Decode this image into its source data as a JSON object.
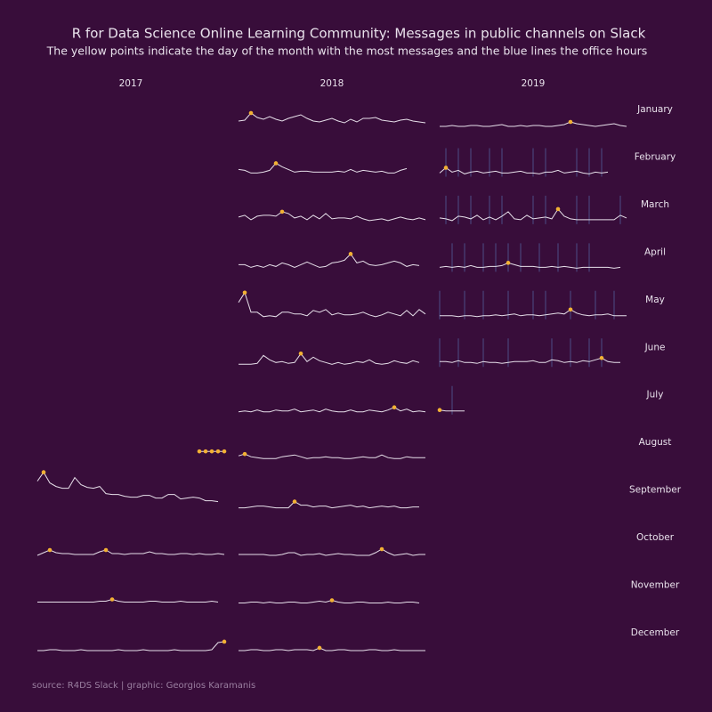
{
  "chart_data": {
    "type": "sparkline-grid",
    "title": "R for Data Science Online Learning Community: Messages in public channels on Slack",
    "subtitle": "The yellow points indicate the day of the month with the most messages and the blue lines the office hours",
    "caption": "source: R4DS Slack | graphic: Georgios Karamanis",
    "months": [
      "January",
      "February",
      "March",
      "April",
      "May",
      "June",
      "July",
      "August",
      "September",
      "October",
      "November",
      "December"
    ],
    "line_color": "#e6dfe9",
    "peak_color": "#f2b134",
    "office_hours_color": "#4b4d86",
    "ylim": [
      0,
      45
    ],
    "columns": [
      {
        "year": "2017",
        "panels": [
          null,
          null,
          null,
          null,
          null,
          null,
          null,
          {
            "first_day": 27,
            "values": [
              12,
              12,
              12,
              12,
              12
            ]
          },
          {
            "first_day": 1,
            "values": [
              32,
              42,
              30,
              26,
              24,
              24,
              36,
              28,
              25,
              24,
              26,
              18,
              17,
              17,
              15,
              14,
              14,
              16,
              16,
              13,
              13,
              17,
              17,
              12,
              13,
              14,
              13,
              10,
              10,
              9
            ]
          },
          {
            "first_day": 1,
            "values": [
              2,
              5,
              8,
              5,
              4,
              4,
              3,
              3,
              3,
              3,
              6,
              8,
              4,
              4,
              3,
              4,
              4,
              4,
              6,
              4,
              4,
              3,
              3,
              4,
              4,
              3,
              4,
              3,
              3,
              4,
              3
            ]
          },
          {
            "first_day": 1,
            "values": [
              3,
              3,
              3,
              3,
              3,
              3,
              3,
              3,
              3,
              3,
              4,
              4,
              6,
              4,
              3,
              3,
              3,
              3,
              4,
              4,
              3,
              3,
              3,
              4,
              3,
              3,
              3,
              3,
              4,
              3
            ]
          },
          {
            "first_day": 1,
            "values": [
              2,
              2,
              3,
              3,
              2,
              2,
              2,
              3,
              2,
              2,
              2,
              2,
              2,
              3,
              2,
              2,
              2,
              3,
              2,
              2,
              2,
              2,
              3,
              2,
              2,
              2,
              2,
              2,
              3,
              11,
              12
            ]
          }
        ]
      },
      {
        "year": "2018",
        "panels": [
          {
            "first_day": 1,
            "values": [
              9,
              10,
              18,
              13,
              11,
              14,
              11,
              9,
              12,
              14,
              16,
              12,
              9,
              8,
              10,
              12,
              9,
              7,
              11,
              8,
              12,
              12,
              13,
              10,
              9,
              8,
              10,
              11,
              9,
              8,
              7
            ]
          },
          {
            "first_day": 1,
            "values": [
              8,
              7,
              4,
              4,
              5,
              7,
              15,
              11,
              8,
              5,
              6,
              6,
              5,
              5,
              5,
              5,
              6,
              5,
              8,
              5,
              7,
              6,
              5,
              6,
              4,
              4,
              7,
              9
            ]
          },
          {
            "first_day": 1,
            "values": [
              8,
              10,
              5,
              9,
              10,
              10,
              9,
              14,
              12,
              7,
              9,
              5,
              10,
              6,
              12,
              6,
              7,
              7,
              6,
              9,
              6,
              4,
              5,
              6,
              4,
              6,
              8,
              6,
              5,
              7,
              5
            ]
          },
          {
            "first_day": 1,
            "values": [
              8,
              8,
              5,
              7,
              5,
              8,
              6,
              10,
              8,
              5,
              8,
              11,
              8,
              5,
              6,
              10,
              11,
              13,
              20,
              10,
              12,
              8,
              7,
              8,
              10,
              12,
              10,
              6,
              8,
              7
            ]
          },
          {
            "first_day": 1,
            "values": [
              19,
              30,
              8,
              8,
              3,
              4,
              3,
              8,
              8,
              6,
              6,
              4,
              10,
              8,
              11,
              5,
              7,
              5,
              5,
              6,
              8,
              5,
              3,
              5,
              8,
              6,
              4,
              10,
              4,
              11,
              6
            ]
          },
          {
            "first_day": 1,
            "values": [
              3,
              3,
              3,
              4,
              13,
              8,
              5,
              6,
              4,
              5,
              15,
              6,
              11,
              7,
              5,
              3,
              5,
              3,
              4,
              6,
              5,
              8,
              4,
              3,
              4,
              7,
              5,
              4,
              7,
              5
            ]
          },
          {
            "first_day": 1,
            "values": [
              3,
              4,
              3,
              5,
              3,
              3,
              5,
              4,
              4,
              6,
              3,
              4,
              5,
              3,
              6,
              4,
              3,
              3,
              5,
              3,
              3,
              5,
              4,
              3,
              5,
              8,
              4,
              6,
              3,
              4,
              3
            ]
          },
          {
            "first_day": 1,
            "values": [
              7,
              9,
              6,
              5,
              4,
              4,
              4,
              6,
              7,
              8,
              6,
              4,
              5,
              5,
              6,
              5,
              5,
              4,
              4,
              5,
              6,
              5,
              5,
              8,
              5,
              4,
              4,
              6,
              5,
              5,
              5
            ]
          },
          {
            "first_day": 1,
            "values": [
              2,
              2,
              3,
              4,
              4,
              3,
              2,
              2,
              2,
              9,
              5,
              5,
              3,
              4,
              4,
              2,
              3,
              4,
              5,
              3,
              4,
              2,
              3,
              4,
              3,
              4,
              2,
              2,
              3,
              3
            ]
          },
          {
            "first_day": 1,
            "values": [
              3,
              3,
              3,
              3,
              3,
              2,
              2,
              3,
              5,
              5,
              2,
              3,
              3,
              4,
              2,
              3,
              4,
              3,
              3,
              2,
              2,
              2,
              5,
              9,
              5,
              2,
              3,
              4,
              2,
              3,
              3
            ]
          },
          {
            "first_day": 1,
            "values": [
              2,
              2,
              3,
              3,
              2,
              3,
              2,
              2,
              3,
              3,
              2,
              2,
              3,
              4,
              3,
              5,
              3,
              2,
              2,
              3,
              3,
              2,
              2,
              2,
              3,
              2,
              2,
              3,
              3,
              2
            ]
          },
          {
            "first_day": 1,
            "values": [
              2,
              2,
              3,
              3,
              2,
              2,
              3,
              3,
              2,
              3,
              3,
              3,
              2,
              5,
              2,
              2,
              3,
              3,
              2,
              2,
              2,
              3,
              3,
              2,
              2,
              3,
              2,
              2,
              2,
              2,
              2
            ]
          }
        ]
      },
      {
        "year": "2019",
        "panels": [
          {
            "first_day": 1,
            "values": [
              3,
              3,
              4,
              3,
              3,
              4,
              4,
              3,
              3,
              4,
              5,
              3,
              3,
              4,
              3,
              4,
              4,
              3,
              3,
              4,
              5,
              8,
              6,
              5,
              4,
              3,
              4,
              5,
              6,
              4,
              3
            ]
          },
          {
            "first_day": 1,
            "values": [
              4,
              10,
              5,
              7,
              3,
              5,
              6,
              4,
              5,
              6,
              4,
              4,
              5,
              6,
              4,
              4,
              3,
              5,
              5,
              7,
              4,
              5,
              6,
              4,
              3,
              5,
              4,
              5
            ],
            "office_hours": [
              2,
              4,
              6,
              9,
              11,
              16,
              18,
              23,
              25,
              27
            ]
          },
          {
            "first_day": 1,
            "values": [
              7,
              6,
              4,
              9,
              8,
              6,
              10,
              5,
              8,
              5,
              9,
              14,
              6,
              5,
              10,
              6,
              7,
              8,
              6,
              17,
              9,
              6,
              5,
              5,
              5,
              5,
              5,
              5,
              5,
              10,
              7
            ],
            "office_hours": [
              2,
              4,
              6,
              9,
              11,
              16,
              18,
              23,
              25,
              30
            ]
          },
          {
            "first_day": 1,
            "values": [
              5,
              6,
              5,
              6,
              5,
              7,
              5,
              5,
              6,
              6,
              7,
              10,
              8,
              6,
              6,
              6,
              5,
              5,
              6,
              5,
              6,
              5,
              4,
              5,
              5,
              5,
              5,
              5,
              4,
              5
            ],
            "office_hours": [
              3,
              5,
              8,
              10,
              12,
              14,
              17,
              20,
              23,
              25
            ]
          },
          {
            "first_day": 1,
            "values": [
              4,
              4,
              4,
              3,
              4,
              4,
              3,
              4,
              4,
              5,
              4,
              5,
              6,
              4,
              5,
              5,
              4,
              5,
              6,
              7,
              6,
              11,
              7,
              5,
              4,
              5,
              5,
              6,
              4,
              4,
              4
            ],
            "office_hours": [
              1,
              5,
              8,
              12,
              16,
              18,
              22,
              26,
              29
            ]
          },
          {
            "first_day": 1,
            "values": [
              6,
              6,
              5,
              7,
              5,
              5,
              4,
              6,
              5,
              5,
              4,
              5,
              6,
              6,
              6,
              7,
              5,
              5,
              8,
              7,
              5,
              6,
              5,
              7,
              6,
              8,
              10,
              6,
              5,
              5
            ],
            "office_hours": [
              1,
              4,
              8,
              12,
              19,
              22,
              25,
              27
            ]
          },
          {
            "first_day": 1,
            "values": [
              5,
              4,
              4,
              4,
              4
            ],
            "office_hours": [
              3
            ]
          },
          null,
          null,
          null,
          null,
          null
        ]
      }
    ]
  }
}
